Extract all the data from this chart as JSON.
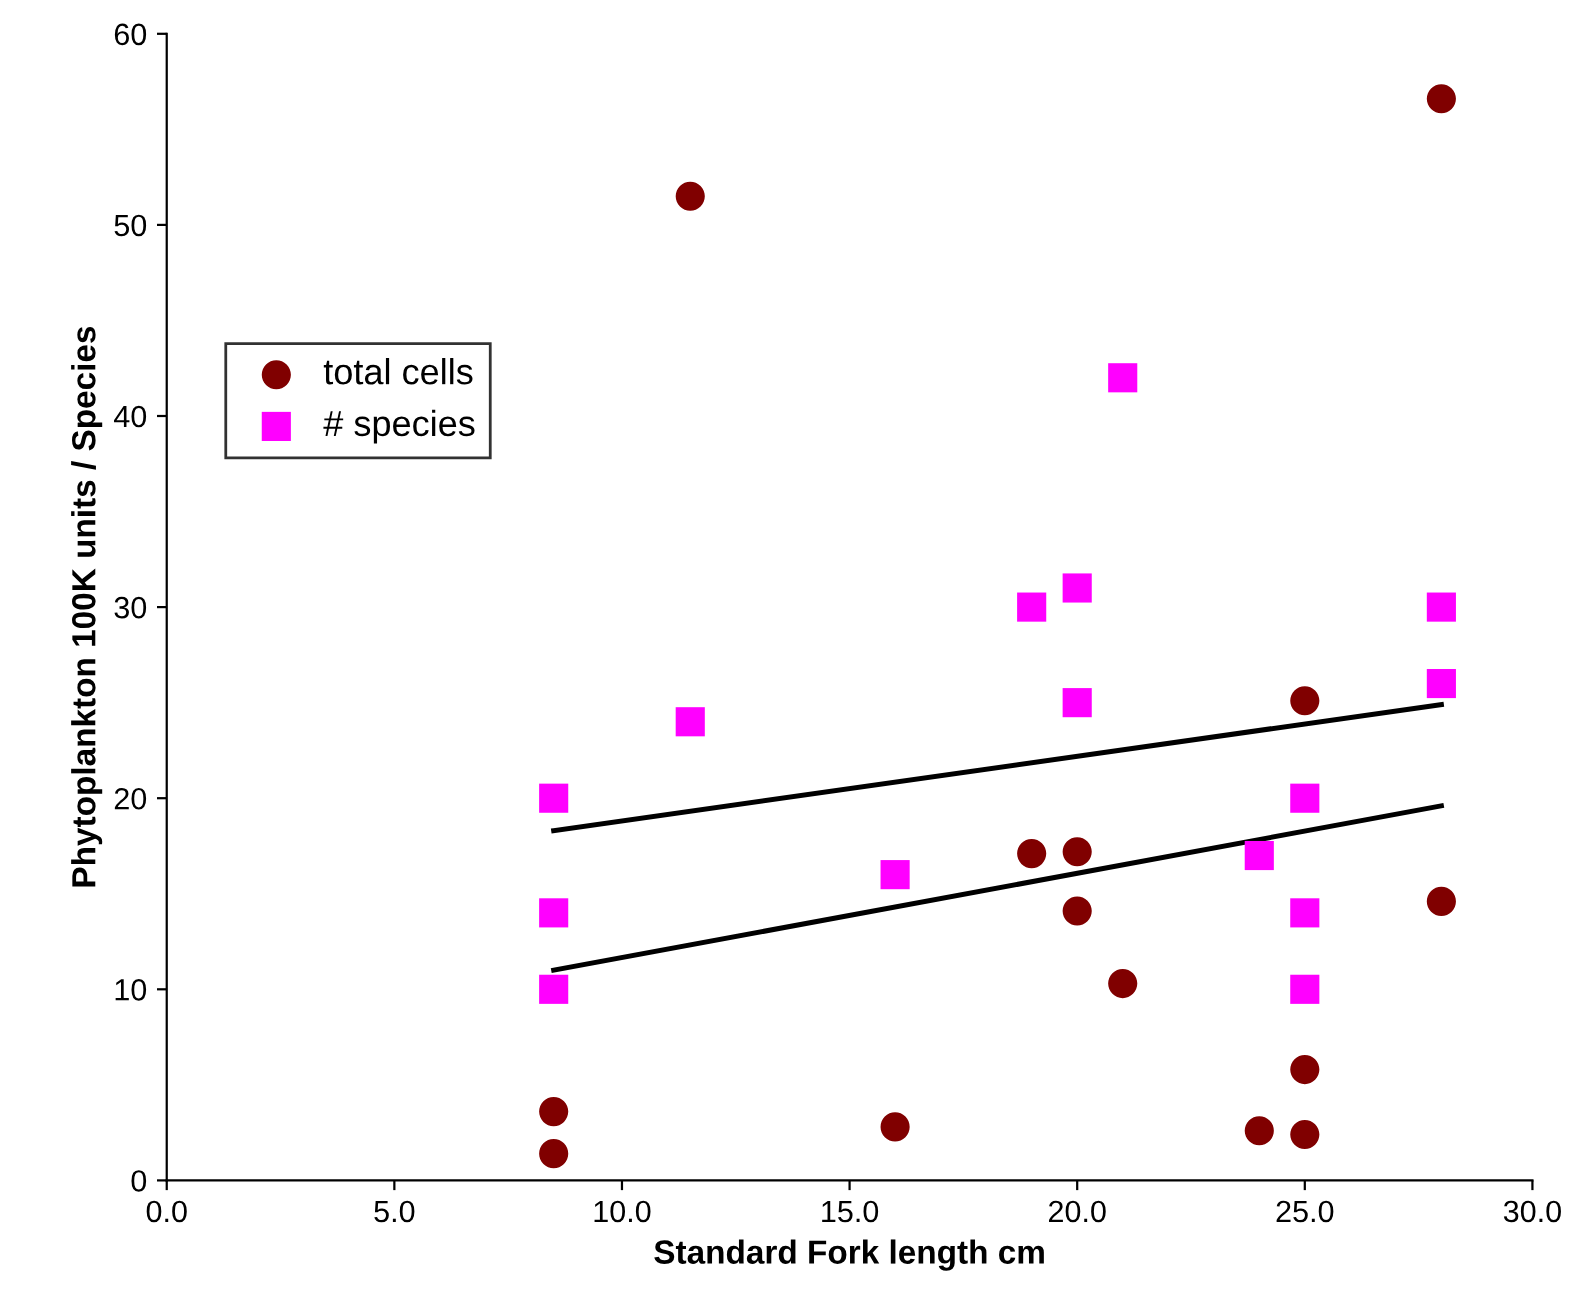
{
  "chart_data": {
    "type": "scatter",
    "xlabel": "Standard Fork length cm",
    "ylabel": "Phytoplankton 100K units / Species",
    "xlim": [
      0,
      30
    ],
    "ylim": [
      0,
      60
    ],
    "xticks": [
      {
        "value": 0,
        "label": "0.0"
      },
      {
        "value": 5,
        "label": "5.0"
      },
      {
        "value": 10,
        "label": "10.0"
      },
      {
        "value": 15,
        "label": "15.0"
      },
      {
        "value": 20,
        "label": "20.0"
      },
      {
        "value": 25,
        "label": "25.0"
      },
      {
        "value": 30,
        "label": "30.0"
      }
    ],
    "yticks": [
      0,
      10,
      20,
      30,
      40,
      50,
      60
    ],
    "grid": false,
    "legend": "left",
    "series": [
      {
        "name": "total cells",
        "marker": "circle",
        "color": "#800000",
        "x": [
          8.5,
          8.5,
          11.5,
          16,
          19,
          20,
          20,
          21,
          24,
          25,
          25,
          25,
          28,
          28
        ],
        "values": [
          3.6,
          1.4,
          51.5,
          2.8,
          17.1,
          17.2,
          14.1,
          10.3,
          2.6,
          25.1,
          5.8,
          2.4,
          56.6,
          14.6
        ]
      },
      {
        "name": "# species",
        "marker": "square",
        "color": "#ff00ff",
        "x": [
          8.5,
          8.5,
          8.5,
          11.5,
          16,
          19,
          20,
          20,
          21,
          24,
          25,
          25,
          25,
          28,
          28
        ],
        "values": [
          20,
          14,
          10,
          24,
          16,
          30,
          31,
          25,
          42,
          17,
          20,
          14,
          10,
          30,
          26
        ]
      },
      {
        "type": "line",
        "line_style": "solid",
        "color": "#000000",
        "x": [
          8.5,
          28
        ],
        "values": [
          11.0,
          19.6
        ]
      },
      {
        "type": "line",
        "line_style": "solid",
        "color": "#000000",
        "x": [
          8.5,
          28
        ],
        "values": [
          18.3,
          24.9
        ]
      }
    ]
  }
}
